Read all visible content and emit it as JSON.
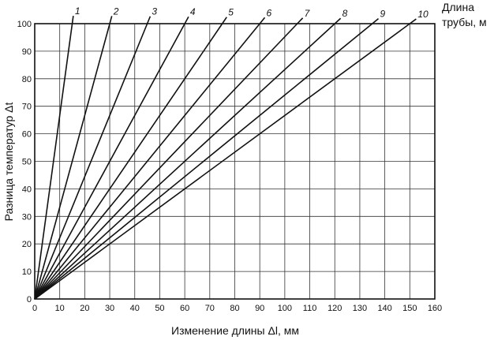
{
  "chart_data": {
    "type": "line",
    "title": "",
    "xlabel": "Изменение длины Δl, мм",
    "ylabel": "Разница температур Δt",
    "legend_title_lines": [
      "Длина",
      "трубы, м"
    ],
    "xlim": [
      0,
      160
    ],
    "ylim": [
      0,
      100
    ],
    "x_ticks": [
      "0",
      "10",
      "20",
      "30",
      "40",
      "50",
      "60",
      "70",
      "80",
      "90",
      "100",
      "110",
      "120",
      "130",
      "140",
      "150",
      "160"
    ],
    "y_ticks": [
      "0",
      "10",
      "20",
      "30",
      "40",
      "50",
      "60",
      "70",
      "80",
      "90",
      "100"
    ],
    "grid": true,
    "line_color": "#111111",
    "series": [
      {
        "name": "1",
        "x": [
          0,
          15
        ],
        "y": [
          0,
          100
        ]
      },
      {
        "name": "2",
        "x": [
          0,
          30
        ],
        "y": [
          0,
          100
        ]
      },
      {
        "name": "3",
        "x": [
          0,
          45
        ],
        "y": [
          0,
          100
        ]
      },
      {
        "name": "4",
        "x": [
          0,
          60
        ],
        "y": [
          0,
          100
        ]
      },
      {
        "name": "5",
        "x": [
          0,
          75
        ],
        "y": [
          0,
          100
        ]
      },
      {
        "name": "6",
        "x": [
          0,
          90
        ],
        "y": [
          0,
          100
        ]
      },
      {
        "name": "7",
        "x": [
          0,
          105
        ],
        "y": [
          0,
          100
        ]
      },
      {
        "name": "8",
        "x": [
          0,
          120
        ],
        "y": [
          0,
          100
        ]
      },
      {
        "name": "9",
        "x": [
          0,
          135
        ],
        "y": [
          0,
          100
        ]
      },
      {
        "name": "10",
        "x": [
          0,
          150
        ],
        "y": [
          0,
          100
        ]
      }
    ]
  }
}
